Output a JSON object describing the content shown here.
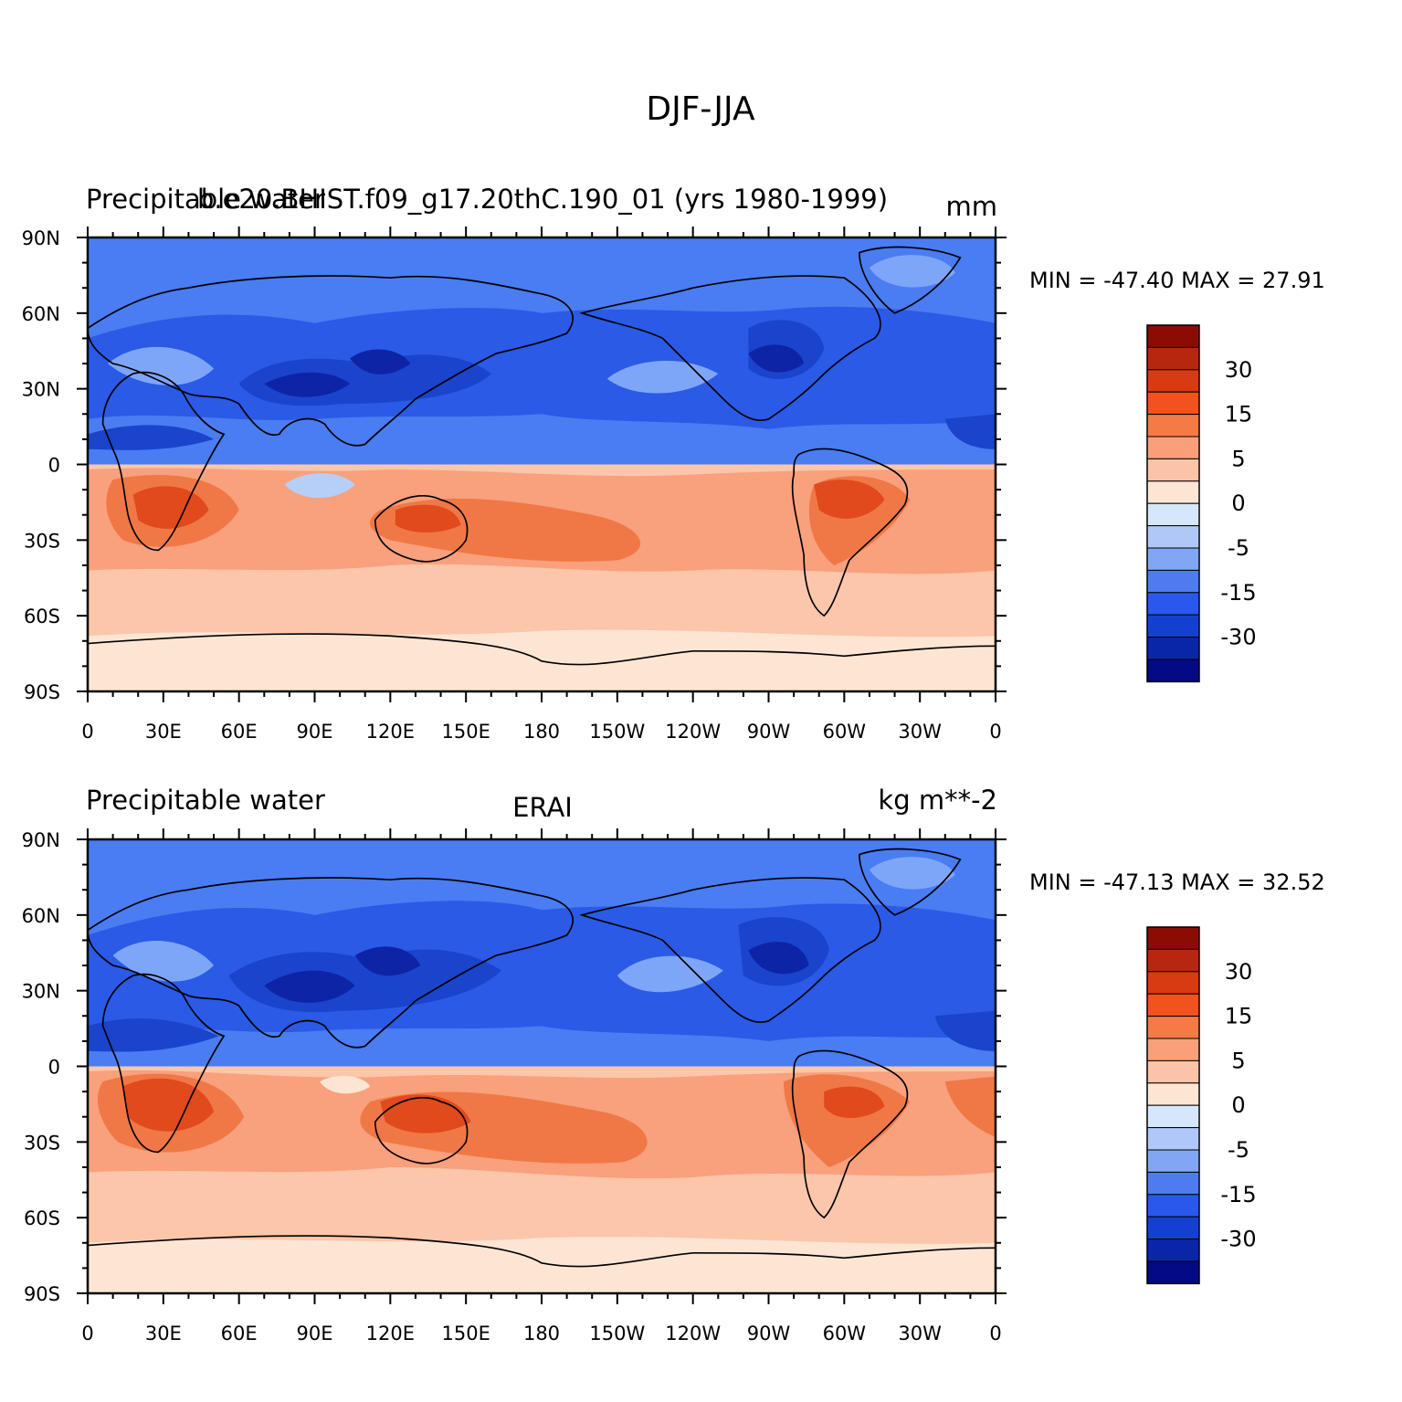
{
  "figure": {
    "title": "DJF-JJA"
  },
  "colorbar_levels": [
    "30",
    "15",
    "5",
    "0",
    "-5",
    "-15",
    "-30"
  ],
  "fill_colors": {
    "n6": "#08066e",
    "n5": "#0e24a6",
    "n4": "#1a44cc",
    "n3": "#2a5ae6",
    "n2": "#4a7cf2",
    "n1": "#7ea6f8",
    "n0": "#b6cff9",
    "p0": "#fde5d4",
    "p1": "#fbc6aa",
    "p2": "#f9a07c",
    "p3": "#f07846",
    "p4": "#e04a1c",
    "p5": "#b72710",
    "p6": "#8c0c04"
  },
  "colorbar_colors": [
    "#8c0c04",
    "#b72710",
    "#d83a12",
    "#f2521e",
    "#f67a46",
    "#f99f7a",
    "#fbc4a8",
    "#fde5d4",
    "#d6e6fb",
    "#b0c8f8",
    "#82a6f4",
    "#4e7cf0",
    "#2a58ec",
    "#1440d2",
    "#0a26a8",
    "#030a86"
  ],
  "panels": [
    {
      "left_title": "Precipitable water",
      "center_title": "b.e20.BHIST.f09_g17.20thC.190_01 (yrs 1980-1999)",
      "units": "mm",
      "minmax": "MIN = -47.40 MAX = 27.91",
      "lat_ticks": [
        "90N",
        "60N",
        "30N",
        "0",
        "30S",
        "60S",
        "90S"
      ],
      "lon_ticks": [
        "0",
        "30E",
        "60E",
        "90E",
        "120E",
        "150E",
        "180",
        "150W",
        "120W",
        "90W",
        "60W",
        "30W",
        "0"
      ]
    },
    {
      "left_title": "Precipitable water",
      "center_title": "ERAI",
      "units": "kg m**-2",
      "minmax": "MIN = -47.13 MAX = 32.52",
      "lat_ticks": [
        "90N",
        "60N",
        "30N",
        "0",
        "30S",
        "60S",
        "90S"
      ],
      "lon_ticks": [
        "0",
        "30E",
        "60E",
        "90E",
        "120E",
        "150E",
        "180",
        "150W",
        "120W",
        "90W",
        "60W",
        "30W",
        "0"
      ]
    }
  ]
}
